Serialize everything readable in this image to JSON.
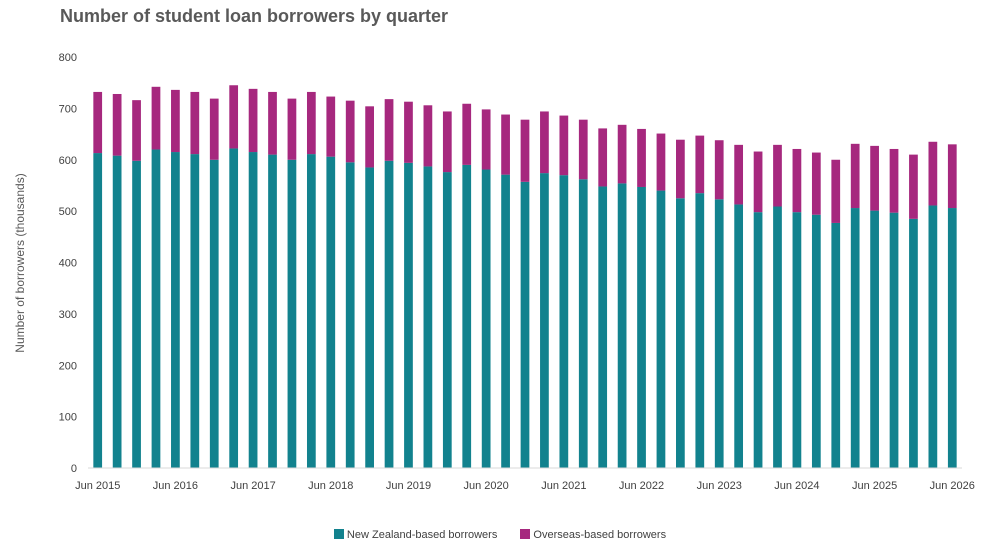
{
  "chart_data": {
    "type": "bar",
    "stacked": true,
    "title": "Number of student loan borrowers by quarter",
    "ylabel": "Number of borrowers (thousands)",
    "ylim": [
      0,
      800
    ],
    "yticks": [
      0,
      100,
      200,
      300,
      400,
      500,
      600,
      700,
      800
    ],
    "x_tick_labels": [
      "Jun 2015",
      "Jun 2016",
      "Jun 2017",
      "Jun 2018",
      "Jun 2019",
      "Jun 2020",
      "Jun 2021",
      "Jun 2022",
      "Jun 2023",
      "Jun 2024",
      "Jun 2025",
      "Jun 2026"
    ],
    "x_tick_every": 4,
    "grid": false,
    "legend_position": "bottom",
    "colors": {
      "nz": "#12828E",
      "overseas": "#A6287E"
    },
    "series": [
      {
        "name": "New Zealand-based borrowers",
        "values": [
          613,
          608,
          598,
          620,
          615,
          611,
          600,
          622,
          615,
          610,
          600,
          611,
          606,
          595,
          585,
          598,
          594,
          587,
          576,
          590,
          581,
          571,
          557,
          574,
          570,
          562,
          548,
          554,
          547,
          540,
          525,
          535,
          523,
          513,
          498,
          509,
          498,
          493,
          477,
          506,
          501,
          497,
          485,
          511,
          506
        ]
      },
      {
        "name": "Overseas-based borrowers",
        "values": [
          119,
          120,
          118,
          122,
          121,
          121,
          119,
          123,
          123,
          122,
          119,
          121,
          117,
          120,
          119,
          120,
          119,
          119,
          118,
          119,
          117,
          117,
          121,
          120,
          116,
          116,
          113,
          114,
          113,
          111,
          114,
          112,
          115,
          116,
          118,
          120,
          123,
          121,
          123,
          125,
          126,
          124,
          125,
          124,
          124
        ]
      }
    ]
  }
}
